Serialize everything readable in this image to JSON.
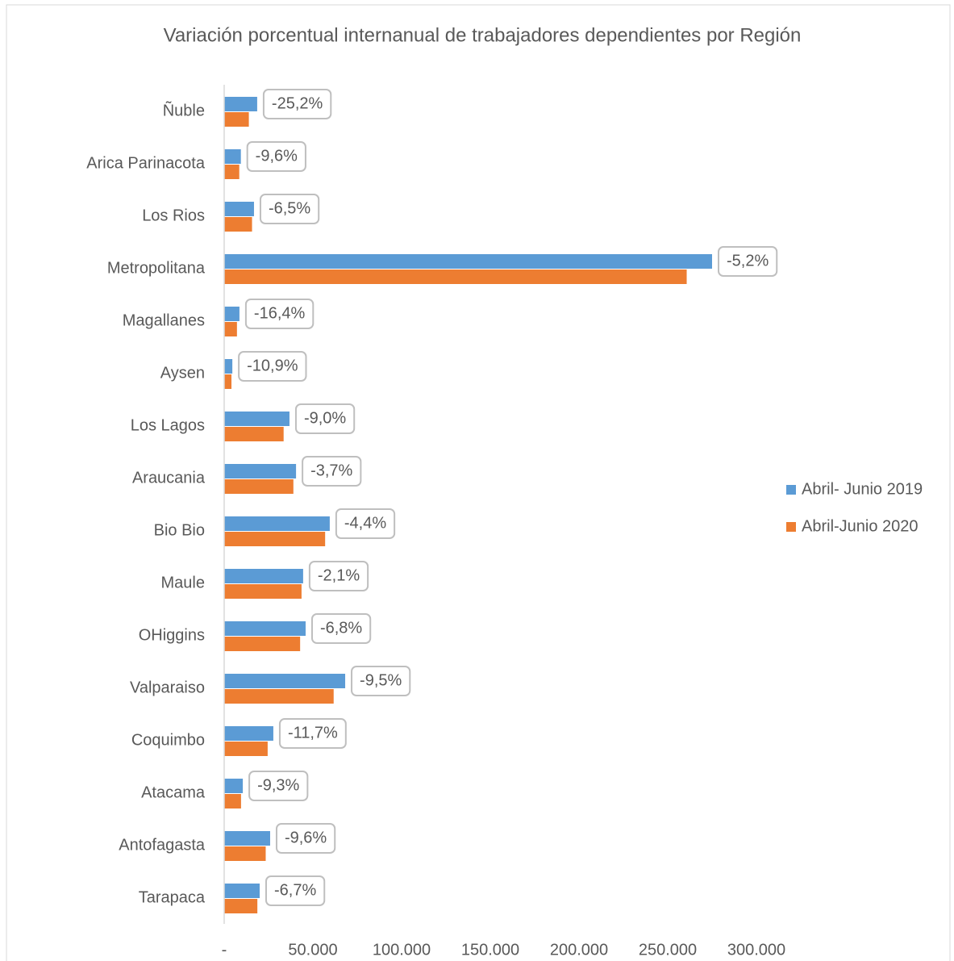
{
  "chart_data": {
    "type": "barh",
    "title": "Variación porcentual internanual de trabajadores dependientes por Región",
    "categories": [
      "Ñuble",
      "Arica Parinacota",
      "Los Rios",
      "Metropolitana",
      "Magallanes",
      "Aysen",
      "Los Lagos",
      "Araucania",
      "Bio Bio",
      "Maule",
      "OHiggins",
      "Valparaiso",
      "Coquimbo",
      "Atacama",
      "Antofagasta",
      "Tarapaca"
    ],
    "series": [
      {
        "name": "Abril- Junio 2019",
        "color": "#5b9bd5",
        "values": [
          18600,
          9400,
          16800,
          275000,
          8600,
          4600,
          36800,
          40500,
          59500,
          44500,
          45900,
          68200,
          27700,
          10500,
          25900,
          20000
        ]
      },
      {
        "name": "Abril-Junio 2020",
        "color": "#ed7d31",
        "values": [
          13900,
          8500,
          15700,
          260700,
          7200,
          4100,
          33500,
          39000,
          56900,
          43600,
          42800,
          61700,
          24500,
          9500,
          23400,
          18700
        ]
      }
    ],
    "variation": {
      "values": [
        -25.2,
        -9.6,
        -6.5,
        -5.2,
        -16.4,
        -10.9,
        -9.0,
        -3.7,
        -4.4,
        -2.1,
        -6.8,
        -9.5,
        -11.7,
        -9.3,
        -9.6,
        -6.7
      ],
      "value_labels": [
        "-25,2%",
        "-9,6%",
        "-6,5%",
        "-5,2%",
        "-16,4%",
        "-10,9%",
        "-9,0%",
        "-3,7%",
        "-4,4%",
        "-2,1%",
        "-6,8%",
        "-9,5%",
        "-11,7%",
        "-9,3%",
        "-9,6%",
        "-6,7%"
      ]
    },
    "xlim": [
      0,
      300000
    ],
    "xticks": [
      {
        "value": 0,
        "label": "-"
      },
      {
        "value": 50000,
        "label": "50.000"
      },
      {
        "value": 100000,
        "label": "100.000"
      },
      {
        "value": 150000,
        "label": "150.000"
      },
      {
        "value": 200000,
        "label": "200.000"
      },
      {
        "value": 250000,
        "label": "250.000"
      },
      {
        "value": 300000,
        "label": "300.000"
      }
    ],
    "legend": "right"
  }
}
